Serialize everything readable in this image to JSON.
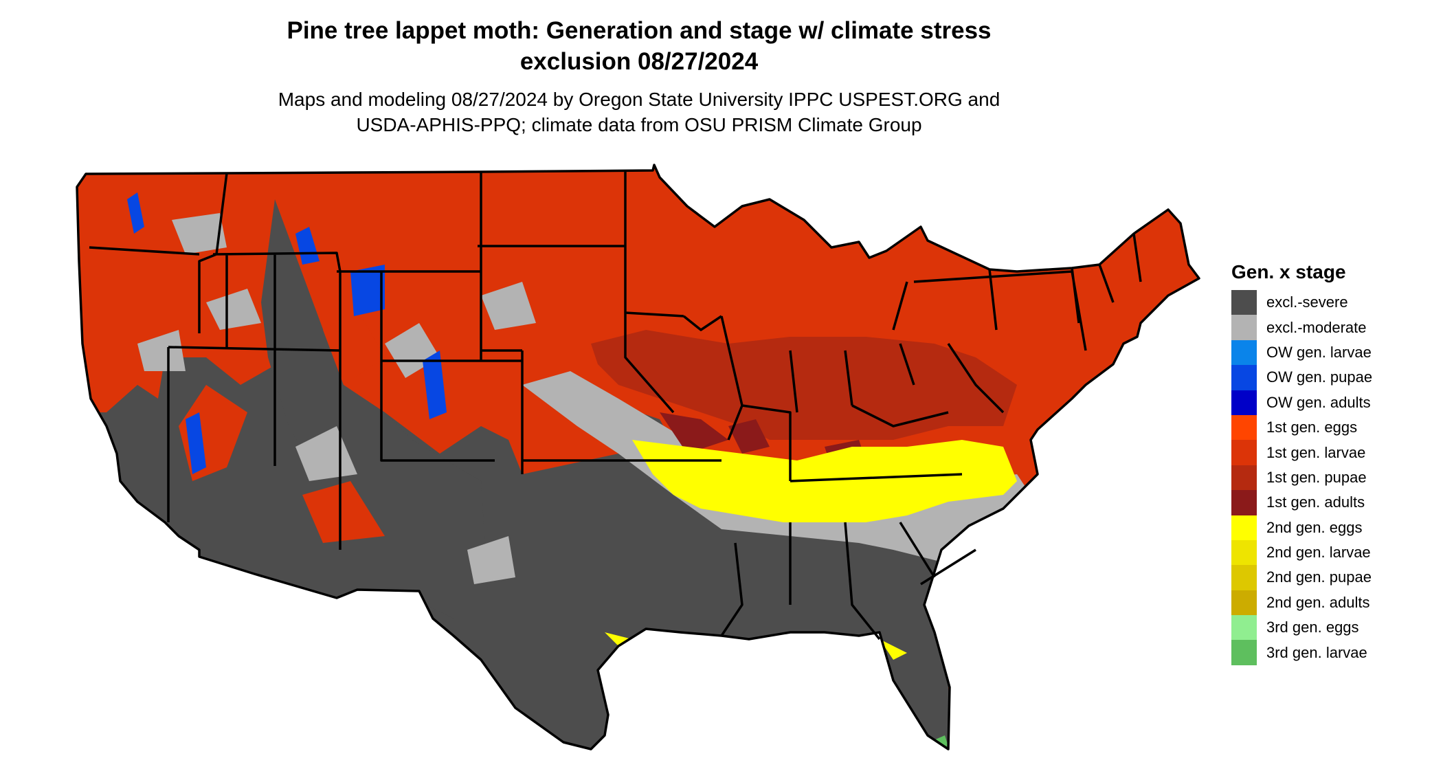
{
  "title_lines": [
    "Pine tree lappet moth: Generation and stage w/ climate stress",
    "exclusion 08/27/2024"
  ],
  "subtitle_lines": [
    "Maps and modeling 08/27/2024 by Oregon State University IPPC USPEST.ORG and",
    "USDA-APHIS-PPQ; climate data from OSU PRISM Climate Group"
  ],
  "legend": {
    "title": "Gen. x stage",
    "items": [
      {
        "label": "excl.-severe",
        "color": "#4d4d4d"
      },
      {
        "label": "excl.-moderate",
        "color": "#b3b3b3"
      },
      {
        "label": "OW gen. larvae",
        "color": "#0a84ea"
      },
      {
        "label": "OW gen. pupae",
        "color": "#0747e3"
      },
      {
        "label": "OW gen. adults",
        "color": "#0000c8"
      },
      {
        "label": "1st gen. eggs",
        "color": "#ff4500"
      },
      {
        "label": "1st gen. larvae",
        "color": "#dc3408"
      },
      {
        "label": "1st gen. pupae",
        "color": "#b52a10"
      },
      {
        "label": "1st gen. adults",
        "color": "#8b1a1a"
      },
      {
        "label": "2nd gen. eggs",
        "color": "#ffff00"
      },
      {
        "label": "2nd gen. larvae",
        "color": "#eee400"
      },
      {
        "label": "2nd gen. pupae",
        "color": "#ddc800"
      },
      {
        "label": "2nd gen. adults",
        "color": "#ccac00"
      },
      {
        "label": "3rd gen. eggs",
        "color": "#90ee90"
      },
      {
        "label": "3rd gen. larvae",
        "color": "#5ebf5e"
      }
    ]
  }
}
